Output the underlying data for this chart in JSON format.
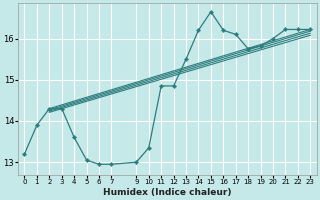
{
  "xlabel": "Humidex (Indice chaleur)",
  "background_color": "#c5e8e8",
  "grid_color": "#ffffff",
  "line_color": "#2d7d7d",
  "xlim": [
    -0.5,
    23.5
  ],
  "ylim": [
    12.7,
    16.85
  ],
  "yticks": [
    13,
    14,
    15,
    16
  ],
  "xtick_values": [
    0,
    1,
    2,
    3,
    4,
    5,
    6,
    7,
    9,
    10,
    11,
    12,
    13,
    14,
    15,
    16,
    17,
    18,
    19,
    20,
    21,
    22,
    23
  ],
  "series": [
    [
      0,
      13.2
    ],
    [
      1,
      13.9
    ],
    [
      2,
      14.3
    ],
    [
      3,
      14.3
    ],
    [
      4,
      13.6
    ],
    [
      5,
      13.05
    ],
    [
      6,
      12.95
    ],
    [
      7,
      12.95
    ],
    [
      9,
      13.0
    ],
    [
      10,
      13.35
    ],
    [
      11,
      14.85
    ],
    [
      12,
      14.85
    ],
    [
      13,
      15.5
    ],
    [
      14,
      16.2
    ],
    [
      15,
      16.65
    ],
    [
      16,
      16.2
    ],
    [
      17,
      16.1
    ],
    [
      18,
      15.75
    ],
    [
      19,
      15.82
    ],
    [
      20,
      16.0
    ],
    [
      21,
      16.22
    ],
    [
      22,
      16.22
    ],
    [
      23,
      16.22
    ]
  ],
  "trend_series": [
    [
      [
        2,
        14.3
      ],
      [
        23,
        16.22
      ]
    ],
    [
      [
        2,
        14.27
      ],
      [
        23,
        16.18
      ]
    ],
    [
      [
        2,
        14.24
      ],
      [
        23,
        16.13
      ]
    ],
    [
      [
        2,
        14.21
      ],
      [
        23,
        16.08
      ]
    ]
  ]
}
